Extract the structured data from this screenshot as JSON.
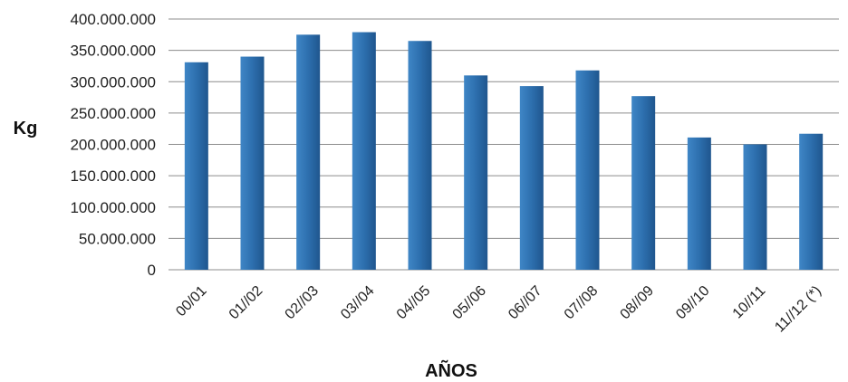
{
  "chart_data": {
    "type": "bar",
    "categories": [
      "00/01",
      "01//02",
      "02//03",
      "03//04",
      "04//05",
      "05//06",
      "06//07",
      "07//08",
      "08//09",
      "09//10",
      "10//11",
      "11//12 (*)"
    ],
    "series": [
      {
        "values": [
          331000000,
          340000000,
          375000000,
          379000000,
          365000000,
          310000000,
          293000000,
          318000000,
          277000000,
          211000000,
          200000000,
          217000000
        ]
      }
    ],
    "title": "",
    "xlabel": "AÑOS",
    "ylabel": "Kg",
    "ylim": [
      0,
      400000000
    ],
    "yticks": [
      0,
      50000000,
      100000000,
      150000000,
      200000000,
      250000000,
      300000000,
      350000000,
      400000000
    ],
    "ytick_labels": [
      "0",
      "50.000.000",
      "100.000.000",
      "150.000.000",
      "200.000.000",
      "250.000.000",
      "300.000.000",
      "350.000.000",
      "400.000.000"
    ],
    "grid": true,
    "legend": "none",
    "colors": {
      "bar_light": "#3f86c6",
      "bar_mid": "#2d6fae",
      "bar_dark": "#1f568e",
      "gridline": "#8c8c8c"
    }
  }
}
